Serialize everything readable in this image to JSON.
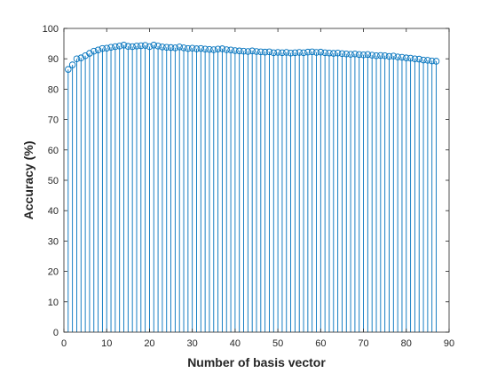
{
  "chart_data": {
    "type": "stem",
    "title": "",
    "xlabel": "Number of basis vector",
    "ylabel": "Accuracy (%)",
    "xlim": [
      0,
      90
    ],
    "ylim": [
      0,
      100
    ],
    "xticks": [
      "0",
      "10",
      "20",
      "30",
      "40",
      "50",
      "60",
      "70",
      "80",
      "90"
    ],
    "yticks": [
      "0",
      "10",
      "20",
      "30",
      "40",
      "50",
      "60",
      "70",
      "80",
      "90",
      "100"
    ],
    "grid": false,
    "series": [
      {
        "color": "#0072BD",
        "marker": "circle",
        "x": [
          1,
          2,
          3,
          4,
          5,
          6,
          7,
          8,
          9,
          10,
          11,
          12,
          13,
          14,
          15,
          16,
          17,
          18,
          19,
          20,
          21,
          22,
          23,
          24,
          25,
          26,
          27,
          28,
          29,
          30,
          31,
          32,
          33,
          34,
          35,
          36,
          37,
          38,
          39,
          40,
          41,
          42,
          43,
          44,
          45,
          46,
          47,
          48,
          49,
          50,
          51,
          52,
          53,
          54,
          55,
          56,
          57,
          58,
          59,
          60,
          61,
          62,
          63,
          64,
          65,
          66,
          67,
          68,
          69,
          70,
          71,
          72,
          73,
          74,
          75,
          76,
          77,
          78,
          79,
          80,
          81,
          82,
          83,
          84,
          85,
          86,
          87
        ],
        "y": [
          86.5,
          88.0,
          90.0,
          90.3,
          91.0,
          91.8,
          92.5,
          92.9,
          93.4,
          93.5,
          93.8,
          94.0,
          94.2,
          94.5,
          94.1,
          94.0,
          94.2,
          94.3,
          94.4,
          94.0,
          94.5,
          94.2,
          93.9,
          93.8,
          93.7,
          93.6,
          93.9,
          93.6,
          93.4,
          93.5,
          93.3,
          93.4,
          93.2,
          93.1,
          93.0,
          93.2,
          93.3,
          93.0,
          92.9,
          92.7,
          92.6,
          92.5,
          92.4,
          92.6,
          92.4,
          92.3,
          92.2,
          92.3,
          92.0,
          92.1,
          92.0,
          92.1,
          91.9,
          92.0,
          92.1,
          92.0,
          92.2,
          92.3,
          92.1,
          92.2,
          92.0,
          91.9,
          91.8,
          91.9,
          91.7,
          91.6,
          91.5,
          91.6,
          91.4,
          91.3,
          91.4,
          91.2,
          91.0,
          91.1,
          91.0,
          90.8,
          90.9,
          90.6,
          90.5,
          90.3,
          90.2,
          90.0,
          89.9,
          89.6,
          89.5,
          89.3,
          89.2
        ]
      }
    ]
  }
}
